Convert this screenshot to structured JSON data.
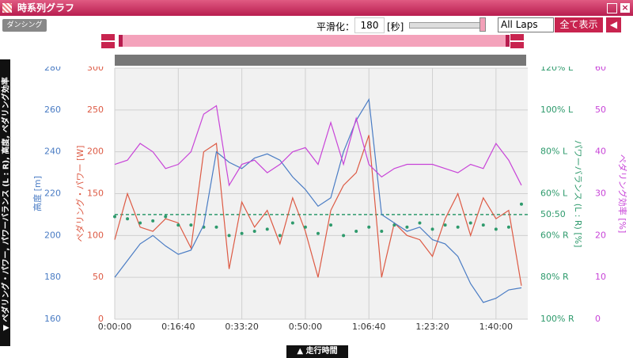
{
  "header": {
    "title": "時系列グラフ"
  },
  "controls": {
    "badge": "ダンシング",
    "smoothing_label": "平滑化：",
    "smoothing_value": "180",
    "smoothing_unit": "[秒]",
    "lap_select": "All Laps",
    "show_all": "全て表示"
  },
  "side_tab": "▼ ペダリング・パワー, パワーバランス (L : R), 高度, ペダリング効率",
  "bottom_tab": "▲ 走行時間",
  "chart_data": {
    "type": "line",
    "grid": true,
    "x": [
      0,
      200,
      400,
      600,
      800,
      1000,
      1200,
      1400,
      1600,
      1800,
      2000,
      2200,
      2400,
      2600,
      2800,
      3000,
      3200,
      3400,
      3600,
      3800,
      4000,
      4200,
      4400,
      4600,
      4800,
      5000,
      5200,
      5400,
      5600,
      5800,
      6000,
      6200,
      6400
    ],
    "xlim": [
      0,
      6500
    ],
    "xticks": [
      {
        "value": 0,
        "label": "0:00:00"
      },
      {
        "value": 1000,
        "label": "0:16:40"
      },
      {
        "value": 2000,
        "label": "0:33:20"
      },
      {
        "value": 3000,
        "label": "0:50:00"
      },
      {
        "value": 4000,
        "label": "1:06:40"
      },
      {
        "value": 5000,
        "label": "1:23:20"
      },
      {
        "value": 6000,
        "label": "1:40:00"
      }
    ],
    "axes": [
      {
        "label": "高度 [m]",
        "side": "left",
        "type": "line",
        "color": "#4a7cc4",
        "ylim": [
          160,
          280
        ],
        "yticks": [
          160,
          180,
          200,
          220,
          240,
          260,
          280
        ],
        "values": [
          180,
          188,
          196,
          200,
          195,
          191,
          193,
          205,
          240,
          235,
          232,
          237,
          239,
          236,
          228,
          222,
          214,
          218,
          240,
          255,
          265,
          210,
          206,
          202,
          204,
          198,
          196,
          190,
          177,
          168,
          170,
          174,
          175
        ]
      },
      {
        "label": "ペダリング・パワー [W]",
        "side": "left",
        "type": "line",
        "color": "#dd5a44",
        "ylim": [
          0,
          300
        ],
        "yticks": [
          0,
          50,
          100,
          150,
          200,
          250,
          300
        ],
        "values": [
          95,
          150,
          110,
          105,
          120,
          115,
          85,
          200,
          210,
          60,
          140,
          110,
          130,
          90,
          145,
          105,
          50,
          130,
          160,
          175,
          220,
          50,
          115,
          100,
          95,
          75,
          120,
          150,
          100,
          145,
          120,
          130,
          40
        ]
      },
      {
        "label": "パワーバランス (L : R) [%]",
        "side": "right",
        "type": "scatter",
        "color": "#2e9a6c",
        "ylim": [
          0,
          120
        ],
        "yticks": [
          {
            "value": 0,
            "label": "100% R"
          },
          {
            "value": 20,
            "label": "80% R"
          },
          {
            "value": 40,
            "label": "60% R"
          },
          {
            "value": 50,
            "label": "50:50"
          },
          {
            "value": 60,
            "label": "60% L"
          },
          {
            "value": 80,
            "label": "80% L"
          },
          {
            "value": 100,
            "label": "100% L"
          },
          {
            "value": 120,
            "label": "120% L"
          }
        ],
        "values": [
          49,
          48,
          46,
          47,
          49,
          45,
          45,
          44,
          44,
          40,
          41,
          42,
          43,
          40,
          46,
          44,
          41,
          45,
          40,
          42,
          44,
          42,
          45,
          44,
          46,
          43,
          45,
          44,
          46,
          45,
          43,
          44,
          55
        ]
      },
      {
        "label": "ペダリング効率 [%]",
        "side": "right",
        "type": "line",
        "color": "#c844d8",
        "ylim": [
          0,
          60
        ],
        "yticks": [
          0,
          10,
          20,
          30,
          40,
          50,
          60
        ],
        "values": [
          37,
          38,
          42,
          40,
          36,
          37,
          40,
          49,
          51,
          32,
          37,
          38,
          35,
          37,
          40,
          41,
          37,
          47,
          37,
          48,
          37,
          34,
          36,
          37,
          37,
          37,
          36,
          35,
          37,
          36,
          42,
          38,
          32
        ]
      }
    ]
  }
}
